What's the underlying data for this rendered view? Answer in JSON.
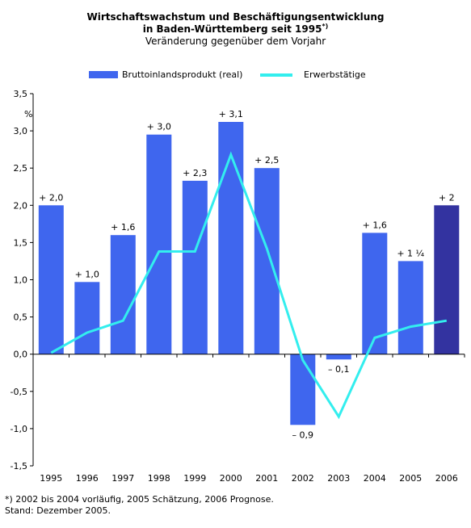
{
  "header": {
    "title_line1": "Wirtschaftswachstum und Beschäftigungsentwicklung",
    "title_line2": "in Baden-Württemberg seit 1995",
    "title_sup": "*)",
    "subtitle": "Veränderung gegenüber dem Vorjahr"
  },
  "chart_data": {
    "type": "bar",
    "title": "Wirtschaftswachstum und Beschäftigungsentwicklung in Baden-Württemberg seit 1995*)",
    "subtitle": "Veränderung gegenüber dem Vorjahr",
    "categories": [
      "1995",
      "1996",
      "1997",
      "1998",
      "1999",
      "2000",
      "2001",
      "2002",
      "2003",
      "2004",
      "2005",
      "2006"
    ],
    "series": [
      {
        "name": "Bruttoinlandsprodukt (real)",
        "type": "bar",
        "color": "#3f66ee",
        "highlight_color": "#3333a0",
        "highlight_index": 11,
        "values": [
          2.0,
          0.97,
          1.6,
          2.95,
          2.33,
          3.12,
          2.5,
          -0.95,
          -0.07,
          1.63,
          1.25,
          2.0
        ],
        "labels": [
          "+ 2,0",
          "+ 1,0",
          "+ 1,6",
          "+ 3,0",
          "+ 2,3",
          "+ 3,1",
          "+ 2,5",
          "– 0,9",
          "– 0,1",
          "+ 1,6",
          "+ 1 ¼",
          "+ 2"
        ]
      },
      {
        "name": "Erwerbstätige",
        "type": "line",
        "color": "#33eeee",
        "values": [
          0.02,
          0.29,
          0.45,
          1.38,
          1.38,
          2.68,
          1.42,
          -0.08,
          -0.84,
          0.22,
          0.37,
          0.45
        ]
      }
    ],
    "y_ticks": [
      "-1,5",
      "-1,0",
      "-0,5",
      "0,0",
      "0,5",
      "1,0",
      "1,5",
      "2,0",
      "2,5",
      "3,0",
      "3,5"
    ],
    "y_tick_values": [
      -1.5,
      -1.0,
      -0.5,
      0.0,
      0.5,
      1.0,
      1.5,
      2.0,
      2.5,
      3.0,
      3.5
    ],
    "y_unit": "%",
    "ylim": [
      -1.5,
      3.5
    ],
    "legend_position": "top",
    "grid": false
  },
  "footnote": {
    "line1": "*) 2002 bis 2004 vorläufig, 2005 Schätzung, 2006 Prognose.",
    "line2": "Stand: Dezember 2005."
  }
}
